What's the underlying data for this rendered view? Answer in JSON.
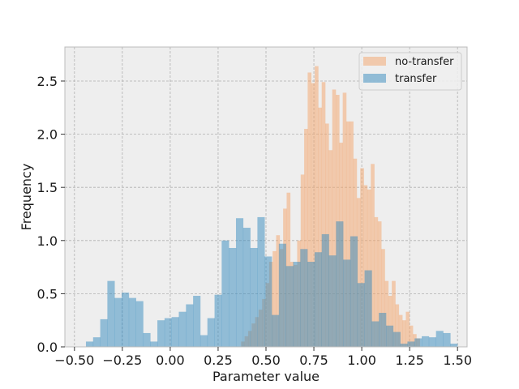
{
  "chart_data": {
    "type": "bar",
    "histogram": true,
    "xlabel": "Parameter value",
    "ylabel": "Frequency",
    "xlim": [
      -0.55,
      1.55
    ],
    "ylim": [
      0,
      2.82
    ],
    "xticks": [
      -0.5,
      -0.25,
      0.0,
      0.25,
      0.5,
      0.75,
      1.0,
      1.25,
      1.5
    ],
    "xtick_labels": [
      "−0.50",
      "−0.25",
      "0.00",
      "0.25",
      "0.50",
      "0.75",
      "1.00",
      "1.25",
      "1.50"
    ],
    "yticks": [
      0.0,
      0.5,
      1.0,
      1.5,
      2.0,
      2.5
    ],
    "ytick_labels": [
      "0.0",
      "0.5",
      "1.0",
      "1.5",
      "2.0",
      "2.5"
    ],
    "grid": true,
    "legend_position": "top-right",
    "series": [
      {
        "name": "no-transfer",
        "color": "#f4a46a",
        "alpha": 0.5,
        "bin_start": 0.37,
        "bin_width": 0.0183,
        "values": [
          0.05,
          0.1,
          0.15,
          0.22,
          0.28,
          0.35,
          0.45,
          0.6,
          0.8,
          0.9,
          1.05,
          0.92,
          1.3,
          1.45,
          0.8,
          0.77,
          1.0,
          1.62,
          2.05,
          2.58,
          2.48,
          2.64,
          2.25,
          2.49,
          2.1,
          1.85,
          2.42,
          2.37,
          1.92,
          2.39,
          2.12,
          2.12,
          1.77,
          1.4,
          1.68,
          1.52,
          1.48,
          1.72,
          1.22,
          1.18,
          0.92,
          0.62,
          0.48,
          0.62,
          0.4,
          0.3,
          0.25,
          0.33,
          0.2,
          0.12,
          0.08
        ]
      },
      {
        "name": "transfer",
        "color": "#348abd",
        "alpha": 0.5,
        "bin_start": -0.44,
        "bin_width": 0.0373,
        "values": [
          0.05,
          0.09,
          0.26,
          0.62,
          0.46,
          0.51,
          0.46,
          0.43,
          0.13,
          0.05,
          0.25,
          0.27,
          0.28,
          0.33,
          0.4,
          0.48,
          0.11,
          0.27,
          0.49,
          1.0,
          0.93,
          1.21,
          1.12,
          0.93,
          1.22,
          0.85,
          0.3,
          0.97,
          0.76,
          0.8,
          0.92,
          0.8,
          0.89,
          1.06,
          0.86,
          1.18,
          0.82,
          1.04,
          0.6,
          0.72,
          0.24,
          0.32,
          0.2,
          0.14,
          0.03,
          0.05,
          0.08,
          0.1,
          0.09,
          0.15,
          0.13,
          0.03
        ]
      }
    ]
  }
}
